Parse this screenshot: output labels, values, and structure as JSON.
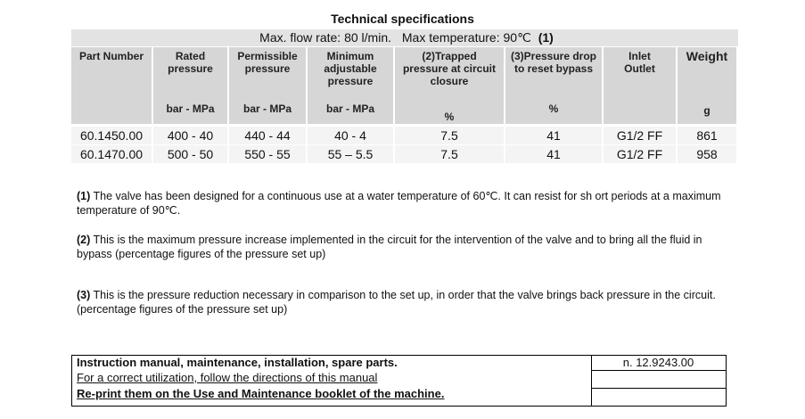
{
  "title": "Technical specifications",
  "subtitle": {
    "flow": "Max. flow rate: 80 l/min.",
    "temperature": "Max temperature: 90℃",
    "note": "(1)"
  },
  "table": {
    "headers": [
      [
        "Part Number"
      ],
      [
        "Rated",
        "pressure"
      ],
      [
        "Permissible",
        "pressure"
      ],
      [
        "Minimum",
        "adjustable",
        "pressure"
      ],
      [
        "(2)Trapped",
        "pressure  at circuit",
        "closure"
      ],
      [
        "(3)Pressure drop",
        "to reset bypass"
      ],
      [
        "Inlet",
        "Outlet"
      ],
      [
        "Weight"
      ]
    ],
    "units": [
      null,
      "bar - MPa",
      "bar - MPa",
      "bar - MPa",
      "%",
      "%",
      null,
      "g"
    ],
    "rows": [
      [
        "60.1450.00",
        "400 - 40",
        "440 - 44",
        "40 - 4",
        "7.5",
        "41",
        "G1/2 FF",
        "861"
      ],
      [
        "60.1470.00",
        "500 - 50",
        "550 - 55",
        "55 – 5.5",
        "7.5",
        "41",
        "G1/2 FF",
        "958"
      ]
    ]
  },
  "notes": [
    {
      "marker": "(1)",
      "text": " The valve has been designed for a continuous use at a water temperature of 60℃. It can resist for sh ort periods at a maximum temperature of 90℃."
    },
    {
      "marker": "(2)",
      "text": " This is the maximum pressure increase implemented in the circuit for the intervention of the valve and to bring all the fluid in bypass (percentage figures of the pressure set up)"
    },
    {
      "marker": "(3)",
      "text": " This is the pressure reduction necessary in comparison to the set up, in order that the valve brings back pressure in the circuit. (percentage figures of the pressure set up)"
    }
  ],
  "footer": {
    "heading": "Instruction manual, maintenance, installation, spare parts.",
    "line": "For a correct utilization, follow the directions of this manual",
    "reprint": "Re-print them on the Use and Maintenance booklet of the machine.",
    "code": "n. 12.9243.00"
  }
}
